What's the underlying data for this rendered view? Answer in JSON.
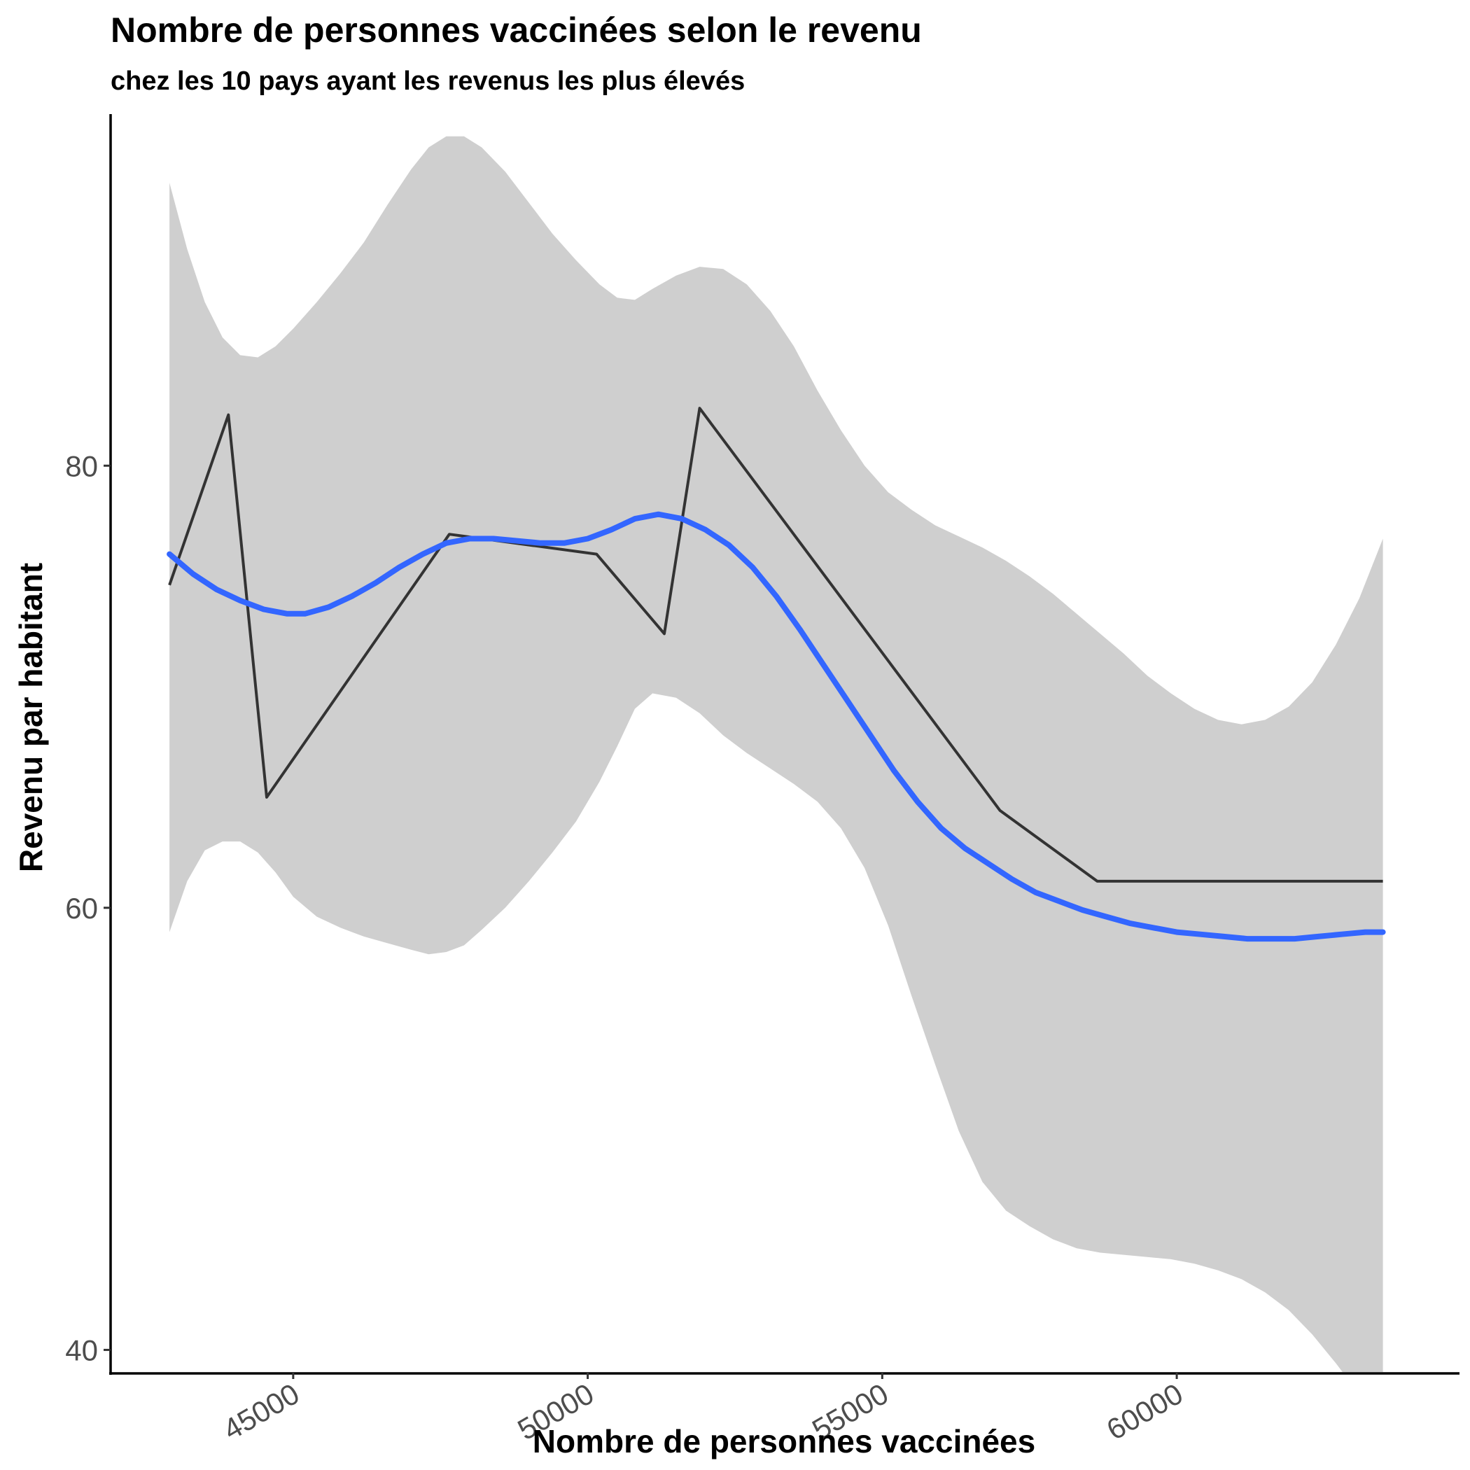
{
  "chart_data": {
    "type": "line",
    "title": "Nombre de personnes vaccinées selon le revenu",
    "subtitle": "chez les 10 pays ayant les revenus les plus élevés",
    "xlabel": "Nombre de personnes vaccinées",
    "ylabel": "Revenu par habitant",
    "xlim": [
      41900,
      64800
    ],
    "ylim": [
      39,
      96
    ],
    "x_ticks": [
      45000,
      50000,
      55000,
      60000
    ],
    "x_tick_labels": [
      "45000",
      "50000",
      "55000",
      "60000"
    ],
    "y_ticks": [
      40,
      60,
      80
    ],
    "y_tick_labels": [
      "40",
      "60",
      "80"
    ],
    "grid": false,
    "legend": "none",
    "series": [
      {
        "kind": "observed",
        "color": "#333333",
        "x": [
          42900,
          43900,
          44550,
          47650,
          50150,
          51300,
          51900,
          57000,
          58650,
          63500
        ],
        "y": [
          74.6,
          82.3,
          65.0,
          76.9,
          76.0,
          72.4,
          82.6,
          64.4,
          61.2,
          61.2
        ]
      },
      {
        "kind": "smooth",
        "color": "#3366ff",
        "x": [
          42900,
          43300,
          43700,
          44100,
          44500,
          44900,
          45200,
          45600,
          46000,
          46400,
          46800,
          47200,
          47600,
          48000,
          48400,
          48800,
          49200,
          49600,
          50000,
          50400,
          50800,
          51200,
          51600,
          52000,
          52400,
          52800,
          53200,
          53600,
          54000,
          54400,
          54800,
          55200,
          55600,
          56000,
          56400,
          56800,
          57200,
          57600,
          58000,
          58400,
          58800,
          59200,
          59600,
          60000,
          60400,
          60800,
          61200,
          61600,
          62000,
          62400,
          62800,
          63200,
          63500
        ],
        "y": [
          76.0,
          75.1,
          74.4,
          73.9,
          73.5,
          73.3,
          73.3,
          73.6,
          74.1,
          74.7,
          75.4,
          76.0,
          76.5,
          76.7,
          76.7,
          76.6,
          76.5,
          76.5,
          76.7,
          77.1,
          77.6,
          77.8,
          77.6,
          77.1,
          76.4,
          75.4,
          74.1,
          72.6,
          71.0,
          69.4,
          67.8,
          66.2,
          64.8,
          63.6,
          62.7,
          62.0,
          61.3,
          60.7,
          60.3,
          59.9,
          59.6,
          59.3,
          59.1,
          58.9,
          58.8,
          58.7,
          58.6,
          58.6,
          58.6,
          58.7,
          58.8,
          58.9,
          58.9
        ]
      }
    ],
    "confidence_band": {
      "color": "#cfcfcf",
      "x": [
        42900,
        43200,
        43500,
        43800,
        44100,
        44400,
        44700,
        45000,
        45400,
        45800,
        46200,
        46600,
        47000,
        47300,
        47600,
        47900,
        48200,
        48600,
        49000,
        49400,
        49800,
        50200,
        50500,
        50800,
        51100,
        51500,
        51900,
        52300,
        52700,
        53100,
        53500,
        53900,
        54300,
        54700,
        55100,
        55500,
        55900,
        56300,
        56700,
        57100,
        57500,
        57900,
        58300,
        58700,
        59100,
        59500,
        59900,
        60300,
        60700,
        61100,
        61500,
        61900,
        62300,
        62700,
        63100,
        63500
      ],
      "upper": [
        92.8,
        89.8,
        87.4,
        85.8,
        85.0,
        84.9,
        85.4,
        86.2,
        87.4,
        88.7,
        90.1,
        91.8,
        93.4,
        94.4,
        94.9,
        94.9,
        94.4,
        93.3,
        91.9,
        90.5,
        89.3,
        88.2,
        87.6,
        87.5,
        88.0,
        88.6,
        89.0,
        88.9,
        88.2,
        87.0,
        85.4,
        83.4,
        81.6,
        80.0,
        78.8,
        78.0,
        77.3,
        76.8,
        76.3,
        75.7,
        75.0,
        74.2,
        73.3,
        72.4,
        71.5,
        70.5,
        69.7,
        69.0,
        68.5,
        68.3,
        68.5,
        69.1,
        70.2,
        71.9,
        74.0,
        76.7
      ],
      "lower": [
        58.9,
        61.2,
        62.6,
        63.0,
        63.0,
        62.5,
        61.6,
        60.5,
        59.6,
        59.1,
        58.7,
        58.4,
        58.1,
        57.9,
        58.0,
        58.3,
        59.0,
        60.0,
        61.2,
        62.5,
        63.9,
        65.7,
        67.3,
        69.0,
        69.7,
        69.5,
        68.8,
        67.8,
        67.0,
        66.3,
        65.6,
        64.8,
        63.6,
        61.8,
        59.2,
        56.0,
        52.9,
        49.9,
        47.6,
        46.3,
        45.6,
        45.0,
        44.6,
        44.4,
        44.3,
        44.2,
        44.1,
        43.9,
        43.6,
        43.2,
        42.6,
        41.8,
        40.7,
        39.4,
        38.0,
        36.6
      ]
    }
  }
}
